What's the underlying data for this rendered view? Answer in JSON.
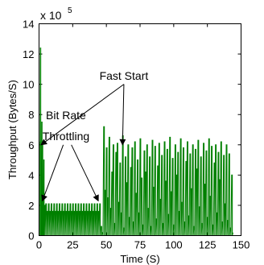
{
  "chart_data": {
    "type": "line",
    "title": "",
    "xlabel": "Time (S)",
    "ylabel": "Throughput (Bytes/S)",
    "y_multiplier": "× 10^5",
    "y_multiplier_base": "x 10",
    "y_multiplier_exp": "5",
    "xlim": [
      0,
      150
    ],
    "ylim": [
      0,
      14
    ],
    "xticks": [
      0,
      25,
      50,
      75,
      100,
      125,
      150
    ],
    "yticks": [
      0,
      2,
      4,
      6,
      8,
      10,
      12,
      14
    ],
    "grid": false,
    "line_color": "#008000",
    "series": [
      {
        "x": [
          0.5,
          1.0,
          1.5,
          2.0,
          2.5,
          3.0,
          3.5,
          4.0,
          5,
          6,
          7,
          8,
          9,
          10,
          11,
          12,
          13,
          14,
          15,
          16,
          17,
          18,
          19,
          20,
          21,
          22,
          23,
          24,
          25,
          26,
          27,
          28,
          29,
          30,
          31,
          32,
          33,
          34,
          35,
          36,
          37,
          38,
          39,
          40,
          41,
          42,
          43,
          44,
          45,
          46,
          47,
          48,
          49,
          50,
          51,
          52,
          53,
          54,
          55,
          56,
          57,
          58,
          59,
          60,
          61,
          62,
          63,
          64,
          65,
          66,
          67,
          68,
          69,
          70,
          71,
          72,
          73,
          74,
          75,
          76,
          77,
          78,
          79,
          80,
          81,
          82,
          83,
          84,
          85,
          86,
          87,
          88,
          89,
          90,
          91,
          92,
          93,
          94,
          95,
          96,
          97,
          98,
          99,
          100,
          101,
          102,
          103,
          104,
          105,
          106,
          107,
          108,
          109,
          110,
          111,
          112,
          113,
          114,
          115,
          116,
          117,
          118,
          119,
          120,
          121,
          122,
          123,
          124,
          125,
          126,
          127,
          128,
          129,
          130,
          131,
          132,
          133,
          134,
          135,
          136,
          137,
          138,
          139,
          140,
          141,
          142,
          143,
          144
        ],
        "y": [
          6.2,
          12.4,
          3.0,
          7.5,
          6.0,
          2.1,
          5.0,
          2.0,
          2.1,
          1.6,
          2.1,
          1.6,
          2.1,
          1.6,
          2.1,
          1.6,
          2.1,
          1.6,
          2.1,
          1.6,
          2.1,
          1.6,
          2.1,
          1.6,
          2.1,
          1.6,
          2.1,
          1.6,
          2.1,
          1.6,
          2.1,
          1.6,
          2.1,
          1.6,
          2.1,
          1.6,
          2.1,
          1.6,
          2.1,
          1.6,
          2.1,
          1.6,
          2.1,
          1.6,
          2.1,
          1.6,
          2.1,
          1.6,
          2.1,
          0.6,
          0.2,
          7.2,
          3.0,
          5.8,
          2.5,
          6.5,
          1.8,
          4.2,
          6.0,
          0.8,
          5.5,
          6.1,
          2.2,
          4.8,
          1.5,
          6.6,
          0.5,
          5.2,
          3.5,
          6.0,
          1.2,
          4.5,
          5.8,
          0.9,
          6.2,
          2.8,
          5.0,
          1.5,
          6.4,
          3.8,
          0.7,
          5.6,
          4.2,
          6.0,
          1.8,
          5.2,
          0.6,
          6.3,
          3.2,
          5.9,
          1.1,
          4.6,
          6.1,
          2.4,
          5.3,
          0.8,
          6.2,
          3.6,
          5.7,
          1.4,
          6.5,
          2.9,
          5.1,
          0.7,
          6.0,
          4.0,
          5.5,
          1.6,
          6.4,
          2.2,
          5.8,
          0.9,
          4.9,
          6.2,
          1.3,
          5.4,
          3.1,
          6.0,
          0.6,
          5.7,
          4.4,
          6.3,
          1.9,
          5.2,
          0.8,
          6.1,
          3.4,
          5.6,
          1.2,
          6.4,
          2.6,
          5.9,
          0.7,
          4.8,
          6.0,
          1.5,
          5.5,
          3.7,
          6.2,
          0.9,
          5.3,
          2.1,
          6.0,
          1.0,
          5.4,
          0.5,
          4.0,
          0.2
        ]
      }
    ],
    "annotations": [
      {
        "text": "Fast Start",
        "x": 63,
        "y": 10.3
      },
      {
        "text": "Bit Rate",
        "x": 20,
        "y": 7.7
      },
      {
        "text": "Throttling",
        "x": 20,
        "y": 6.3
      }
    ],
    "arrows": [
      {
        "from": [
          63,
          10.0
        ],
        "to": [
          1.5,
          6.0
        ]
      },
      {
        "from": [
          63,
          10.0
        ],
        "to": [
          62,
          6.0
        ]
      },
      {
        "from": [
          18,
          6.0
        ],
        "to": [
          2.5,
          2.3
        ]
      },
      {
        "from": [
          24,
          6.0
        ],
        "to": [
          44,
          2.3
        ]
      }
    ]
  }
}
